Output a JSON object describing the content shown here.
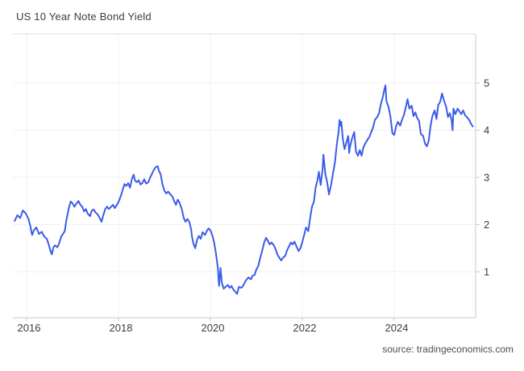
{
  "title": "US 10 Year Note Bond Yield",
  "source": "source: tradingeconomics.com",
  "chart_data": {
    "type": "line",
    "title": "US 10 Year Note Bond Yield",
    "xlabel": "",
    "ylabel": "",
    "legend": "none",
    "grid": "on",
    "y_axis_side": "right",
    "ylim": [
      0,
      5.6
    ],
    "x_range": [
      2015.74,
      2025.74
    ],
    "line_color": "#3a5ce8",
    "grid_color": "#f1f1f1",
    "frame_color": "#e0e0e0",
    "tick_color": "#c9c9c9",
    "label_color": "#3c3c3c",
    "x_ticks": [
      {
        "label": "2016",
        "year": 2016
      },
      {
        "label": "2018",
        "year": 2018
      },
      {
        "label": "2020",
        "year": 2020
      },
      {
        "label": "2022",
        "year": 2022
      },
      {
        "label": "2024",
        "year": 2024
      }
    ],
    "y_ticks": [
      {
        "label": "1",
        "value": 1
      },
      {
        "label": "2",
        "value": 2
      },
      {
        "label": "3",
        "value": 3
      },
      {
        "label": "4",
        "value": 4
      },
      {
        "label": "5",
        "value": 5
      }
    ],
    "points": [
      [
        2015.74,
        2.08
      ],
      [
        2015.8,
        2.2
      ],
      [
        2015.86,
        2.14
      ],
      [
        2015.92,
        2.3
      ],
      [
        2015.98,
        2.24
      ],
      [
        2016.04,
        2.12
      ],
      [
        2016.08,
        1.97
      ],
      [
        2016.12,
        1.78
      ],
      [
        2016.16,
        1.88
      ],
      [
        2016.21,
        1.94
      ],
      [
        2016.27,
        1.8
      ],
      [
        2016.33,
        1.85
      ],
      [
        2016.38,
        1.75
      ],
      [
        2016.44,
        1.7
      ],
      [
        2016.48,
        1.58
      ],
      [
        2016.52,
        1.44
      ],
      [
        2016.55,
        1.37
      ],
      [
        2016.58,
        1.51
      ],
      [
        2016.62,
        1.56
      ],
      [
        2016.67,
        1.52
      ],
      [
        2016.71,
        1.61
      ],
      [
        2016.75,
        1.74
      ],
      [
        2016.79,
        1.8
      ],
      [
        2016.83,
        1.86
      ],
      [
        2016.87,
        2.12
      ],
      [
        2016.92,
        2.35
      ],
      [
        2016.96,
        2.49
      ],
      [
        2017.0,
        2.45
      ],
      [
        2017.04,
        2.38
      ],
      [
        2017.08,
        2.44
      ],
      [
        2017.13,
        2.5
      ],
      [
        2017.17,
        2.42
      ],
      [
        2017.21,
        2.38
      ],
      [
        2017.25,
        2.28
      ],
      [
        2017.29,
        2.33
      ],
      [
        2017.33,
        2.23
      ],
      [
        2017.38,
        2.18
      ],
      [
        2017.42,
        2.3
      ],
      [
        2017.46,
        2.32
      ],
      [
        2017.5,
        2.26
      ],
      [
        2017.54,
        2.22
      ],
      [
        2017.58,
        2.16
      ],
      [
        2017.63,
        2.06
      ],
      [
        2017.67,
        2.2
      ],
      [
        2017.71,
        2.33
      ],
      [
        2017.75,
        2.38
      ],
      [
        2017.79,
        2.33
      ],
      [
        2017.83,
        2.37
      ],
      [
        2017.88,
        2.42
      ],
      [
        2017.92,
        2.35
      ],
      [
        2017.96,
        2.41
      ],
      [
        2018.0,
        2.48
      ],
      [
        2018.04,
        2.58
      ],
      [
        2018.08,
        2.7
      ],
      [
        2018.13,
        2.86
      ],
      [
        2018.17,
        2.82
      ],
      [
        2018.21,
        2.88
      ],
      [
        2018.25,
        2.78
      ],
      [
        2018.29,
        2.96
      ],
      [
        2018.33,
        3.06
      ],
      [
        2018.36,
        2.93
      ],
      [
        2018.4,
        2.9
      ],
      [
        2018.44,
        2.94
      ],
      [
        2018.48,
        2.85
      ],
      [
        2018.52,
        2.88
      ],
      [
        2018.56,
        2.96
      ],
      [
        2018.6,
        2.87
      ],
      [
        2018.65,
        2.9
      ],
      [
        2018.69,
        3.0
      ],
      [
        2018.73,
        3.08
      ],
      [
        2018.77,
        3.16
      ],
      [
        2018.81,
        3.22
      ],
      [
        2018.85,
        3.24
      ],
      [
        2018.88,
        3.14
      ],
      [
        2018.92,
        3.06
      ],
      [
        2018.96,
        2.84
      ],
      [
        2019.0,
        2.72
      ],
      [
        2019.04,
        2.66
      ],
      [
        2019.08,
        2.7
      ],
      [
        2019.13,
        2.64
      ],
      [
        2019.17,
        2.6
      ],
      [
        2019.21,
        2.5
      ],
      [
        2019.25,
        2.42
      ],
      [
        2019.29,
        2.53
      ],
      [
        2019.33,
        2.46
      ],
      [
        2019.38,
        2.32
      ],
      [
        2019.42,
        2.14
      ],
      [
        2019.46,
        2.06
      ],
      [
        2019.5,
        2.12
      ],
      [
        2019.54,
        2.06
      ],
      [
        2019.58,
        1.9
      ],
      [
        2019.6,
        1.74
      ],
      [
        2019.63,
        1.6
      ],
      [
        2019.67,
        1.5
      ],
      [
        2019.71,
        1.68
      ],
      [
        2019.75,
        1.76
      ],
      [
        2019.79,
        1.7
      ],
      [
        2019.83,
        1.84
      ],
      [
        2019.88,
        1.78
      ],
      [
        2019.92,
        1.86
      ],
      [
        2019.96,
        1.92
      ],
      [
        2020.0,
        1.88
      ],
      [
        2020.04,
        1.78
      ],
      [
        2020.08,
        1.62
      ],
      [
        2020.12,
        1.4
      ],
      [
        2020.16,
        1.1
      ],
      [
        2020.19,
        0.7
      ],
      [
        2020.22,
        1.08
      ],
      [
        2020.25,
        0.76
      ],
      [
        2020.29,
        0.64
      ],
      [
        2020.33,
        0.68
      ],
      [
        2020.38,
        0.72
      ],
      [
        2020.42,
        0.66
      ],
      [
        2020.46,
        0.7
      ],
      [
        2020.5,
        0.62
      ],
      [
        2020.54,
        0.58
      ],
      [
        2020.58,
        0.53
      ],
      [
        2020.62,
        0.68
      ],
      [
        2020.67,
        0.66
      ],
      [
        2020.71,
        0.7
      ],
      [
        2020.75,
        0.78
      ],
      [
        2020.79,
        0.84
      ],
      [
        2020.83,
        0.88
      ],
      [
        2020.88,
        0.84
      ],
      [
        2020.92,
        0.92
      ],
      [
        2020.96,
        0.93
      ],
      [
        2021.0,
        1.05
      ],
      [
        2021.04,
        1.12
      ],
      [
        2021.08,
        1.28
      ],
      [
        2021.13,
        1.46
      ],
      [
        2021.17,
        1.62
      ],
      [
        2021.21,
        1.72
      ],
      [
        2021.25,
        1.66
      ],
      [
        2021.29,
        1.58
      ],
      [
        2021.33,
        1.62
      ],
      [
        2021.38,
        1.56
      ],
      [
        2021.42,
        1.48
      ],
      [
        2021.46,
        1.36
      ],
      [
        2021.5,
        1.3
      ],
      [
        2021.54,
        1.24
      ],
      [
        2021.58,
        1.3
      ],
      [
        2021.63,
        1.34
      ],
      [
        2021.67,
        1.46
      ],
      [
        2021.71,
        1.54
      ],
      [
        2021.75,
        1.62
      ],
      [
        2021.79,
        1.58
      ],
      [
        2021.83,
        1.64
      ],
      [
        2021.88,
        1.52
      ],
      [
        2021.92,
        1.44
      ],
      [
        2021.96,
        1.5
      ],
      [
        2022.0,
        1.63
      ],
      [
        2022.04,
        1.78
      ],
      [
        2022.08,
        1.94
      ],
      [
        2022.13,
        1.86
      ],
      [
        2022.17,
        2.14
      ],
      [
        2022.21,
        2.38
      ],
      [
        2022.25,
        2.48
      ],
      [
        2022.29,
        2.78
      ],
      [
        2022.33,
        2.94
      ],
      [
        2022.36,
        3.12
      ],
      [
        2022.4,
        2.84
      ],
      [
        2022.44,
        3.16
      ],
      [
        2022.46,
        3.48
      ],
      [
        2022.5,
        3.08
      ],
      [
        2022.54,
        2.9
      ],
      [
        2022.58,
        2.64
      ],
      [
        2022.63,
        2.86
      ],
      [
        2022.67,
        3.1
      ],
      [
        2022.71,
        3.32
      ],
      [
        2022.75,
        3.7
      ],
      [
        2022.79,
        3.96
      ],
      [
        2022.81,
        4.22
      ],
      [
        2022.83,
        4.1
      ],
      [
        2022.85,
        4.18
      ],
      [
        2022.88,
        3.82
      ],
      [
        2022.92,
        3.6
      ],
      [
        2022.96,
        3.74
      ],
      [
        2023.0,
        3.88
      ],
      [
        2023.02,
        3.52
      ],
      [
        2023.04,
        3.66
      ],
      [
        2023.08,
        3.82
      ],
      [
        2023.13,
        3.96
      ],
      [
        2023.17,
        3.54
      ],
      [
        2023.21,
        3.46
      ],
      [
        2023.25,
        3.58
      ],
      [
        2023.29,
        3.46
      ],
      [
        2023.33,
        3.64
      ],
      [
        2023.38,
        3.74
      ],
      [
        2023.42,
        3.8
      ],
      [
        2023.46,
        3.86
      ],
      [
        2023.5,
        3.96
      ],
      [
        2023.54,
        4.06
      ],
      [
        2023.58,
        4.22
      ],
      [
        2023.63,
        4.28
      ],
      [
        2023.67,
        4.36
      ],
      [
        2023.71,
        4.56
      ],
      [
        2023.75,
        4.7
      ],
      [
        2023.79,
        4.88
      ],
      [
        2023.81,
        4.95
      ],
      [
        2023.83,
        4.62
      ],
      [
        2023.88,
        4.48
      ],
      [
        2023.92,
        4.28
      ],
      [
        2023.96,
        3.94
      ],
      [
        2024.0,
        3.9
      ],
      [
        2024.04,
        4.08
      ],
      [
        2024.08,
        4.18
      ],
      [
        2024.13,
        4.1
      ],
      [
        2024.17,
        4.22
      ],
      [
        2024.21,
        4.32
      ],
      [
        2024.25,
        4.48
      ],
      [
        2024.29,
        4.66
      ],
      [
        2024.33,
        4.46
      ],
      [
        2024.38,
        4.52
      ],
      [
        2024.42,
        4.3
      ],
      [
        2024.46,
        4.38
      ],
      [
        2024.5,
        4.26
      ],
      [
        2024.54,
        4.2
      ],
      [
        2024.58,
        3.92
      ],
      [
        2024.63,
        3.88
      ],
      [
        2024.67,
        3.72
      ],
      [
        2024.71,
        3.66
      ],
      [
        2024.75,
        3.78
      ],
      [
        2024.79,
        4.08
      ],
      [
        2024.83,
        4.3
      ],
      [
        2024.88,
        4.42
      ],
      [
        2024.92,
        4.24
      ],
      [
        2024.96,
        4.54
      ],
      [
        2025.0,
        4.6
      ],
      [
        2025.04,
        4.78
      ],
      [
        2025.08,
        4.64
      ],
      [
        2025.13,
        4.5
      ],
      [
        2025.17,
        4.28
      ],
      [
        2025.21,
        4.36
      ],
      [
        2025.25,
        4.2
      ],
      [
        2025.27,
        4.0
      ],
      [
        2025.29,
        4.46
      ],
      [
        2025.33,
        4.34
      ],
      [
        2025.38,
        4.46
      ],
      [
        2025.42,
        4.4
      ],
      [
        2025.46,
        4.34
      ],
      [
        2025.5,
        4.42
      ],
      [
        2025.54,
        4.32
      ],
      [
        2025.58,
        4.28
      ],
      [
        2025.63,
        4.22
      ],
      [
        2025.67,
        4.14
      ],
      [
        2025.71,
        4.08
      ]
    ]
  }
}
